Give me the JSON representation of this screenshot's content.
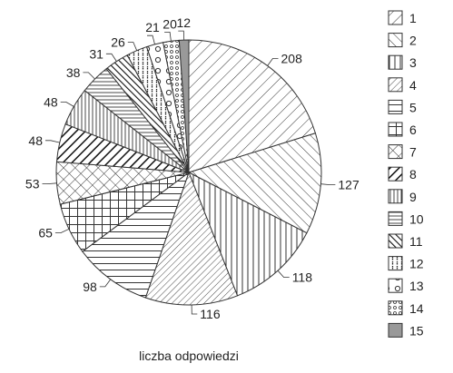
{
  "chart_data": {
    "type": "pie",
    "title": "",
    "xlabel": "liczba odpowiedzi",
    "start_angle_deg": 0,
    "direction": "clockwise",
    "legend_position": "right",
    "slices": [
      {
        "label": "1",
        "value": 208,
        "pattern": "diag-fwd"
      },
      {
        "label": "2",
        "value": 127,
        "pattern": "diag-back"
      },
      {
        "label": "3",
        "value": 118,
        "pattern": "vertical"
      },
      {
        "label": "4",
        "value": 116,
        "pattern": "diag-fwd-dense"
      },
      {
        "label": "5",
        "value": 98,
        "pattern": "horizontal"
      },
      {
        "label": "6",
        "value": 65,
        "pattern": "grid"
      },
      {
        "label": "7",
        "value": 53,
        "pattern": "crosshatch"
      },
      {
        "label": "8",
        "value": 48,
        "pattern": "diag-fwd-bold"
      },
      {
        "label": "9",
        "value": 48,
        "pattern": "vertical-dense"
      },
      {
        "label": "10",
        "value": 38,
        "pattern": "horizontal-dense"
      },
      {
        "label": "11",
        "value": 31,
        "pattern": "diag-back-bold"
      },
      {
        "label": "12",
        "value": 26,
        "pattern": "dotted-vertical"
      },
      {
        "label": "13",
        "value": 21,
        "pattern": "circles"
      },
      {
        "label": "14",
        "value": 20,
        "pattern": "small-circles"
      },
      {
        "label": "15",
        "value": 12,
        "pattern": "solid-gray"
      }
    ]
  }
}
